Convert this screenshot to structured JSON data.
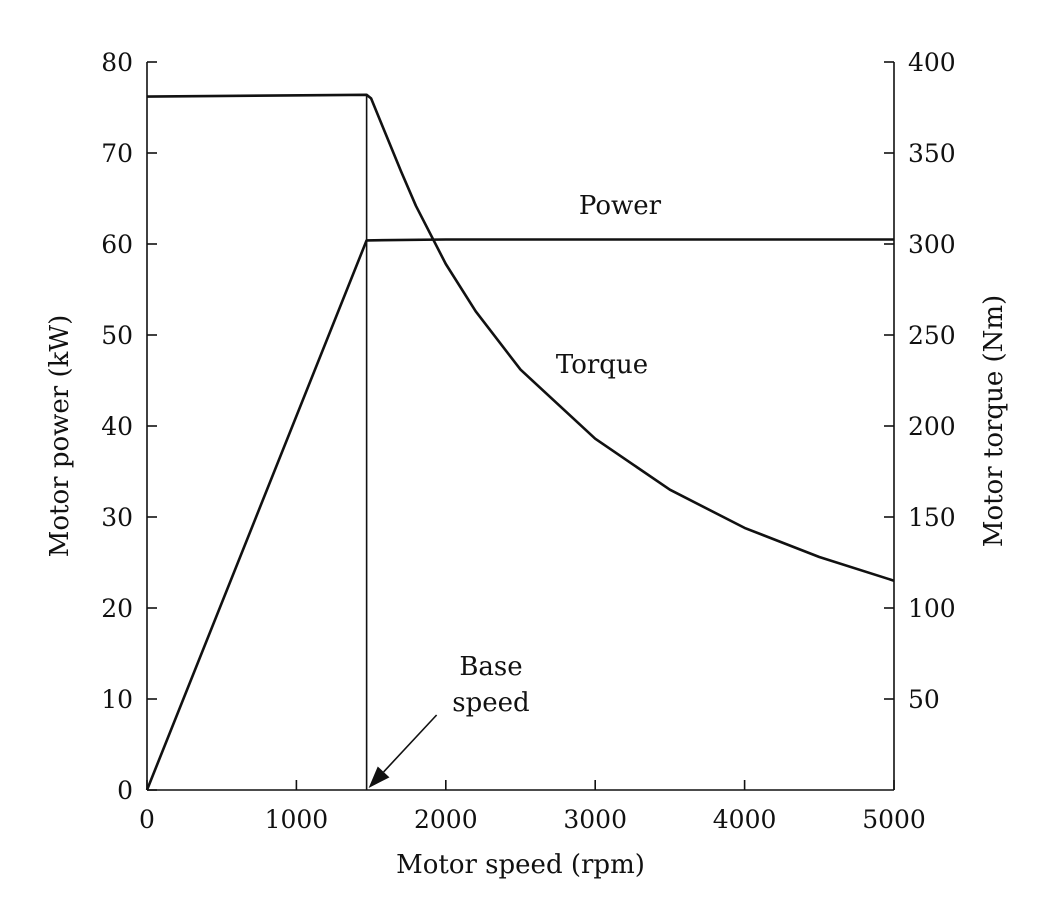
{
  "chart_data": {
    "type": "line",
    "xlabel": "Motor speed (rpm)",
    "ylabel": "Motor power (kW)",
    "y2label": "Motor torque (Nm)",
    "xlim": [
      0,
      5000
    ],
    "ylim": [
      0,
      80
    ],
    "y2lim": [
      0,
      400
    ],
    "x_ticks": [
      0,
      1000,
      2000,
      3000,
      4000,
      5000
    ],
    "y_ticks": [
      0,
      10,
      20,
      30,
      40,
      50,
      60,
      70,
      80
    ],
    "y2_ticks": [
      50,
      100,
      150,
      200,
      250,
      300,
      350,
      400
    ],
    "grid": false,
    "series": [
      {
        "name": "Power",
        "axis": "left",
        "x": [
          0,
          1470,
          2000,
          3000,
          4000,
          5000
        ],
        "y": [
          0,
          60.4,
          60.5,
          60.5,
          60.5,
          60.5
        ]
      },
      {
        "name": "Torque",
        "axis": "right",
        "x": [
          0,
          1470,
          1500,
          1600,
          1700,
          1800,
          2000,
          2200,
          2500,
          3000,
          3500,
          4000,
          4500,
          5000
        ],
        "y": [
          381,
          382,
          380,
          360,
          340,
          321,
          289,
          263,
          231,
          193,
          165,
          144,
          128,
          115
        ]
      }
    ],
    "annotations": {
      "power_label": "Power",
      "torque_label": "Torque",
      "base_speed_line1": "Base",
      "base_speed_line2": "speed",
      "base_speed_rpm": 1470
    }
  }
}
